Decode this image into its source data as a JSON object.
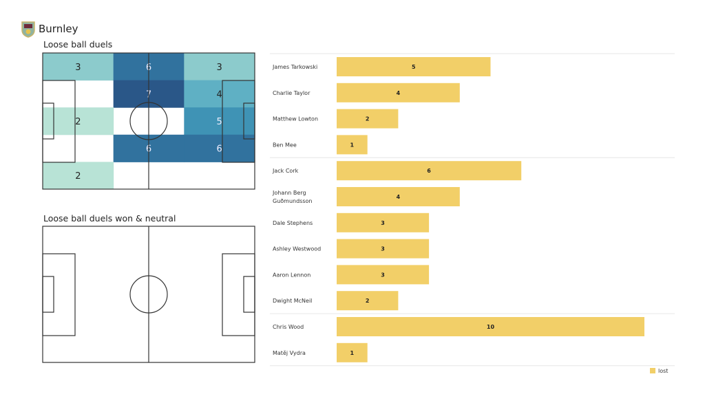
{
  "team": "Burnley",
  "colors": {
    "bar": "#f2cf68",
    "line": "#333333",
    "scale": {
      "2": "#b8e3d6",
      "3": "#8ccbcc",
      "4": "#5fb0c4",
      "5": "#3f93b5",
      "6": "#31729e",
      "7": "#2a5788"
    }
  },
  "chart_data": [
    {
      "type": "heatmap",
      "title": "Loose ball duels",
      "rows": 5,
      "cols": 3,
      "values": [
        [
          3,
          6,
          3
        ],
        [
          0,
          7,
          4
        ],
        [
          2,
          0,
          5
        ],
        [
          0,
          6,
          6
        ],
        [
          2,
          0,
          0
        ]
      ]
    },
    {
      "type": "heatmap",
      "title": "Loose ball duels won & neutral",
      "rows": 5,
      "cols": 3,
      "values": [
        [
          0,
          0,
          0
        ],
        [
          0,
          0,
          0
        ],
        [
          0,
          0,
          0
        ],
        [
          0,
          0,
          0
        ],
        [
          0,
          0,
          0
        ]
      ]
    },
    {
      "type": "bar",
      "orientation": "horizontal",
      "legend": [
        "lost"
      ],
      "legend_position": "bottom-right",
      "groups": [
        4,
        6,
        2
      ],
      "categories": [
        "James  Tarkowski",
        "Charlie Taylor",
        "Matthew Lowton",
        "Ben Mee",
        "Jack Cork",
        "Johann  Berg\nGuðmundsson",
        "Dale Stephens",
        "Ashley Westwood",
        "Aaron  Lennon",
        "Dwight McNeil",
        "Chris Wood",
        "Matěj Vydra"
      ],
      "values": [
        5,
        4,
        2,
        1,
        6,
        4,
        3,
        3,
        3,
        2,
        10,
        1
      ]
    }
  ]
}
